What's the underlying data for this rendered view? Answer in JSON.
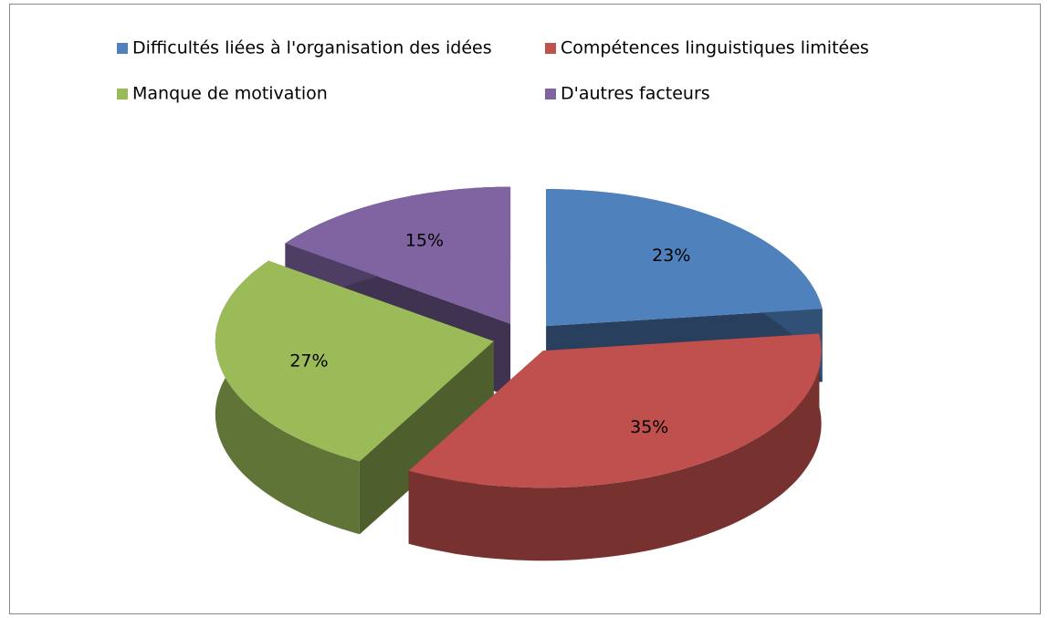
{
  "chart_data": {
    "type": "pie3d",
    "categories": [
      "Difficultés liées à l'organisation des idées",
      "Compétences linguistiques limitées",
      "Manque de motivation",
      "D'autres facteurs"
    ],
    "values": [
      23,
      35,
      27,
      15
    ],
    "value_labels": [
      "23%",
      "35%",
      "27%",
      "15%"
    ],
    "colors": [
      "#4f81bd",
      "#c0504d",
      "#9bbb59",
      "#8064a2"
    ],
    "legend": "top"
  }
}
